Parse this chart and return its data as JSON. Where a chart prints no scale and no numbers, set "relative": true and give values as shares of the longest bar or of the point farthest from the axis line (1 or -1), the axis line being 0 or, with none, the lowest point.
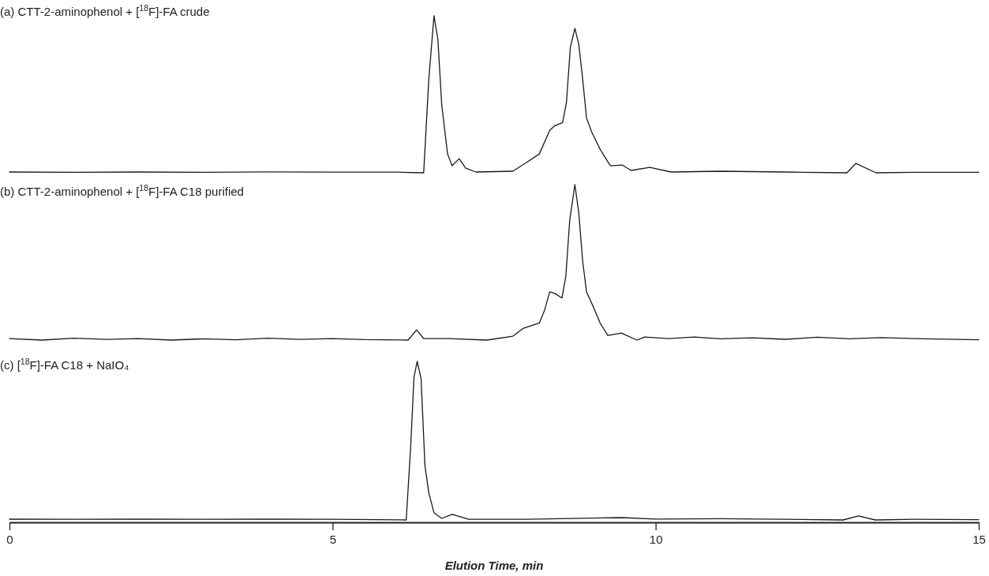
{
  "chart_data": [
    {
      "type": "line",
      "title": "(a) CTT-2-aminophenol + [$^{18}$F]-FA crude",
      "relative": true,
      "xlim": [
        0,
        15
      ],
      "tick_labels": false,
      "marker": "none",
      "line_style": "solid",
      "series": [
        {
          "color": "#1a1a1a",
          "x": [
            0,
            1,
            2,
            3,
            4,
            5,
            6,
            6.41,
            6.49,
            6.57,
            6.63,
            6.69,
            6.78,
            6.85,
            6.96,
            7.06,
            7.22,
            7.79,
            8.0,
            8.2,
            8.36,
            8.44,
            8.56,
            8.62,
            8.68,
            8.75,
            8.81,
            8.87,
            8.93,
            9.01,
            9.14,
            9.3,
            9.48,
            9.62,
            9.91,
            10.24,
            11,
            12,
            12.96,
            13.1,
            13.41,
            14,
            15
          ],
          "values": [
            0.005,
            0.003,
            0.005,
            0.003,
            0.006,
            0.004,
            0.004,
            0,
            0.6,
            1.0,
            0.85,
            0.43,
            0.12,
            0.045,
            0.09,
            0.03,
            0.005,
            0.01,
            0.065,
            0.12,
            0.27,
            0.3,
            0.32,
            0.45,
            0.8,
            0.92,
            0.82,
            0.6,
            0.35,
            0.26,
            0.15,
            0.045,
            0.05,
            0.015,
            0.035,
            0.005,
            0.01,
            0.005,
            0,
            0.06,
            0,
            0.003,
            0.003
          ]
        }
      ]
    },
    {
      "type": "line",
      "title": "(b) CTT-2-aminophenol + [$^{18}$F]-FA C18 purified",
      "relative": true,
      "xlim": [
        0,
        15
      ],
      "tick_labels": false,
      "marker": "none",
      "line_style": "solid",
      "series": [
        {
          "color": "#1a1a1a",
          "x": [
            0,
            0.5,
            1,
            1.5,
            2,
            2.5,
            3,
            3.5,
            4,
            4.5,
            5,
            5.5,
            6.17,
            6.3,
            6.41,
            6.8,
            7.39,
            7.79,
            7.95,
            8.2,
            8.28,
            8.36,
            8.44,
            8.55,
            8.61,
            8.67,
            8.75,
            8.81,
            8.87,
            8.93,
            9.04,
            9.14,
            9.26,
            9.47,
            9.71,
            9.83,
            10.2,
            10.6,
            11,
            11.5,
            12,
            12.5,
            13,
            13.5,
            14,
            14.5,
            15
          ],
          "values": [
            0.01,
            0.0,
            0.012,
            0.004,
            0.01,
            0.0,
            0.008,
            0.002,
            0.012,
            0.004,
            0.01,
            0.003,
            0,
            0.065,
            0.01,
            0.01,
            0,
            0.025,
            0.075,
            0.11,
            0.19,
            0.31,
            0.3,
            0.27,
            0.41,
            0.77,
            1.0,
            0.82,
            0.51,
            0.31,
            0.21,
            0.11,
            0.03,
            0.045,
            0,
            0.02,
            0.01,
            0.02,
            0.008,
            0.015,
            0.005,
            0.018,
            0.008,
            0.016,
            0.01,
            0.006,
            0.002
          ]
        }
      ]
    },
    {
      "type": "line",
      "title": "(c) [$^{18}$F]-FA C18 + NaIO₄",
      "relative": true,
      "xlim": [
        0,
        15
      ],
      "xticks": [
        0,
        5,
        10,
        15
      ],
      "xlabel": "Elution Time, min",
      "tick_labels": "x",
      "marker": "none",
      "line_style": "solid",
      "series": [
        {
          "color": "#1a1a1a",
          "x": [
            0,
            1,
            2,
            3,
            4,
            5,
            6.14,
            6.21,
            6.26,
            6.31,
            6.37,
            6.43,
            6.49,
            6.57,
            6.69,
            6.85,
            7.1,
            8,
            9.48,
            10,
            11,
            12,
            12.9,
            13.14,
            13.4,
            14,
            15
          ],
          "values": [
            0.005,
            0.004,
            0.005,
            0.004,
            0.005,
            0.004,
            0,
            0.47,
            0.9,
            1.0,
            0.89,
            0.34,
            0.17,
            0.045,
            0.01,
            0.035,
            0.005,
            0.004,
            0.015,
            0.006,
            0.008,
            0.004,
            0,
            0.025,
            0,
            0.004,
            0.002
          ]
        }
      ]
    }
  ]
}
